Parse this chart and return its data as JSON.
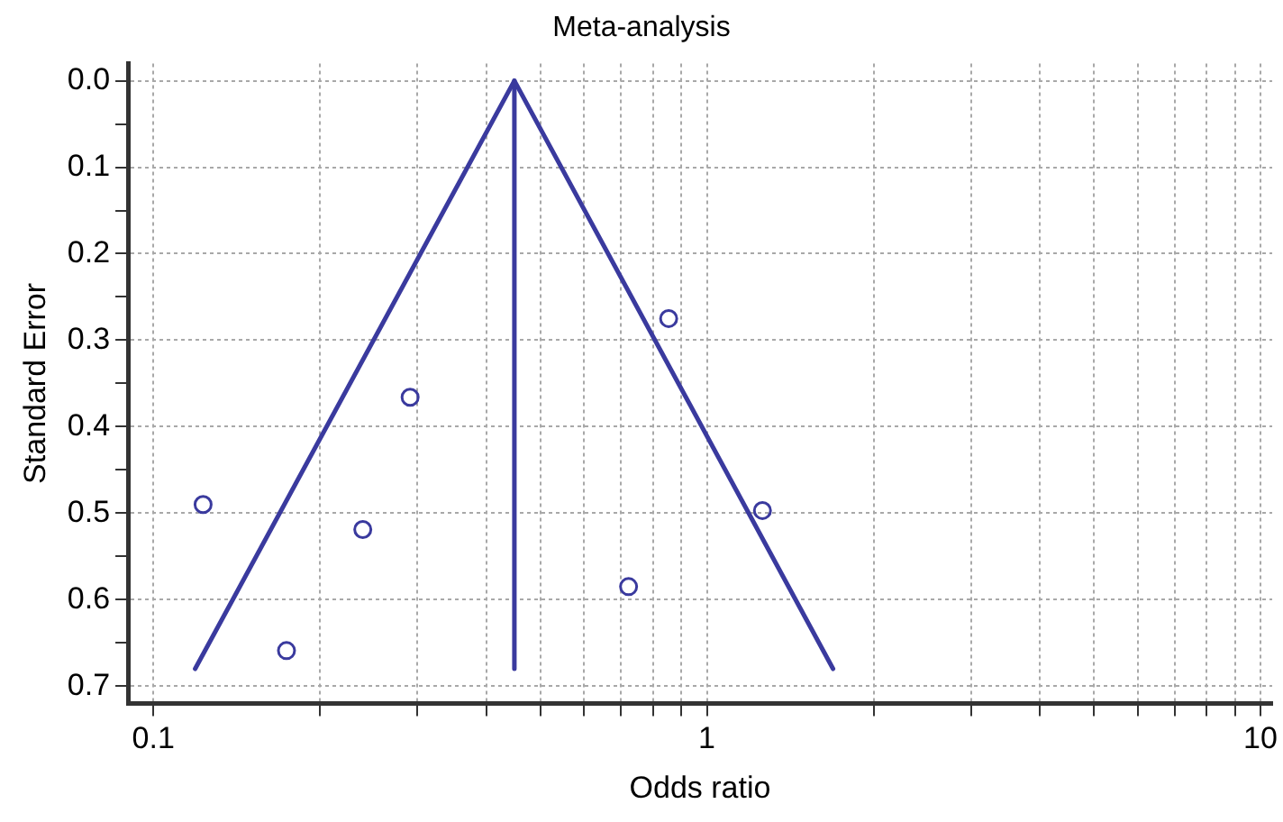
{
  "chart_data": {
    "type": "scatter",
    "title": "Meta-analysis",
    "xlabel": "Odds ratio",
    "ylabel": "Standard Error",
    "log": "x",
    "xlim": [
      0.09,
      10.5
    ],
    "xticks": [
      0.1,
      {
        "value": 0.2,
        "label": null
      },
      {
        "value": 0.3,
        "label": null
      },
      {
        "value": 0.4,
        "label": null
      },
      {
        "value": 0.5,
        "label": null
      },
      {
        "value": 0.6,
        "label": null
      },
      {
        "value": 0.7,
        "label": null
      },
      {
        "value": 0.8,
        "label": null
      },
      {
        "value": 0.9,
        "label": null
      },
      1,
      {
        "value": 2,
        "label": null
      },
      {
        "value": 3,
        "label": null
      },
      {
        "value": 4,
        "label": null
      },
      {
        "value": 5,
        "label": null
      },
      {
        "value": 6,
        "label": null
      },
      {
        "value": 7,
        "label": null
      },
      {
        "value": 8,
        "label": null
      },
      {
        "value": 9,
        "label": null
      },
      10
    ],
    "ylim": [
      0.72,
      -0.02
    ],
    "yticks": [
      {
        "value": 0,
        "label": "0.0"
      },
      {
        "value": 0.05,
        "label": null
      },
      0.1,
      {
        "value": 0.15,
        "label": null
      },
      0.2,
      {
        "value": 0.25,
        "label": null
      },
      0.3,
      {
        "value": 0.35,
        "label": null
      },
      0.4,
      {
        "value": 0.45,
        "label": null
      },
      0.5,
      {
        "value": 0.55,
        "label": null
      },
      0.6,
      {
        "value": 0.65,
        "label": null
      },
      0.7
    ],
    "grid": true,
    "legend": false,
    "series": [
      {
        "type": "line",
        "line_style": "solid",
        "marker": "none",
        "color": "#3a3a9e",
        "x": [
          0.119,
          0.449,
          1.69
        ],
        "values": [
          0.68,
          0,
          0.68
        ]
      },
      {
        "type": "line",
        "line_style": "solid",
        "marker": "none",
        "color": "#3a3a9e",
        "x": [
          0.449,
          0.449
        ],
        "values": [
          0,
          0.68
        ]
      },
      {
        "type": "scatter",
        "marker": "circle",
        "color": "#3a3a9e",
        "x": [
          0.123,
          0.174,
          0.239,
          0.291,
          0.722,
          0.853,
          1.26
        ],
        "values": [
          0.49,
          0.659,
          0.519,
          0.366,
          0.585,
          0.275,
          0.497
        ]
      }
    ]
  }
}
